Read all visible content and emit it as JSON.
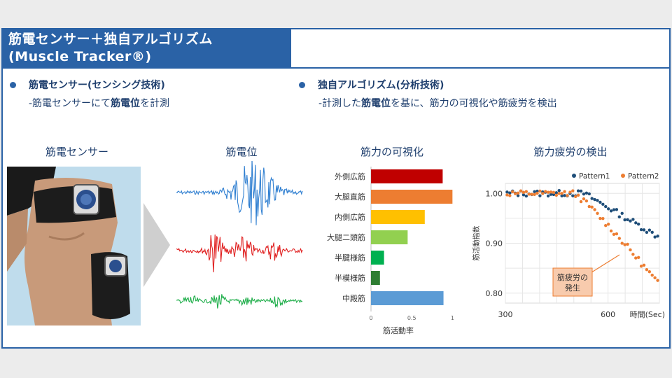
{
  "title": {
    "line1": "筋電センサー＋独自アルゴリズム",
    "line2": "(Muscle Tracker®)"
  },
  "left_bullet": {
    "title": "筋電センサー(センシング技術)",
    "sub_prefix": "-筋電センサーにて",
    "sub_bold": "筋電位",
    "sub_suffix": "を計測"
  },
  "right_bullet": {
    "title": "独自アルゴリズム(分析技術)",
    "sub_prefix": "-計測した",
    "sub_bold": "筋電位",
    "sub_suffix": "を基に、筋力の可視化や筋疲労を検出"
  },
  "sections": {
    "sensor": "筋電センサー",
    "potential": "筋電位",
    "visualization": "筋力の可視化",
    "fatigue": "筋力疲労の検出"
  },
  "chart_data": [
    {
      "type": "bar",
      "orientation": "horizontal",
      "categories": [
        "外側広筋",
        "大腿直筋",
        "内側広筋",
        "大腿二頭筋",
        "半腱様筋",
        "半模様筋",
        "中殿筋"
      ],
      "values": [
        0.88,
        1.0,
        0.66,
        0.45,
        0.16,
        0.11,
        0.89
      ],
      "colors": [
        "#c00000",
        "#ed7d31",
        "#ffc000",
        "#92d050",
        "#00b050",
        "#2e7d32",
        "#5b9bd5"
      ],
      "xlabel": "筋活動率",
      "xticks": [
        "0",
        "0.5",
        "1"
      ],
      "xlim": [
        0,
        1.1
      ]
    },
    {
      "type": "scatter",
      "ylabel": "筋活動指数",
      "xlabel": "時間(Sec)",
      "xticks": [
        "300",
        "600"
      ],
      "yticks": [
        "1.00",
        "0.90",
        "0.80"
      ],
      "xlim": [
        300,
        750
      ],
      "ylim": [
        0.78,
        1.02
      ],
      "grid": true,
      "legend": "top-right",
      "annotation": [
        "筋疲労の",
        "発生"
      ],
      "series": [
        {
          "name": "Pattern1",
          "color": "#1f4e79"
        },
        {
          "name": "Pattern2",
          "color": "#ed7d31"
        }
      ]
    }
  ],
  "colors": {
    "brand_blue": "#2a62a6",
    "text_navy": "#1f3f6e",
    "wave_blue": "#2f7fd1",
    "wave_red": "#e02020",
    "wave_green": "#1fae4a",
    "annotation_fill": "#f8cbad"
  }
}
